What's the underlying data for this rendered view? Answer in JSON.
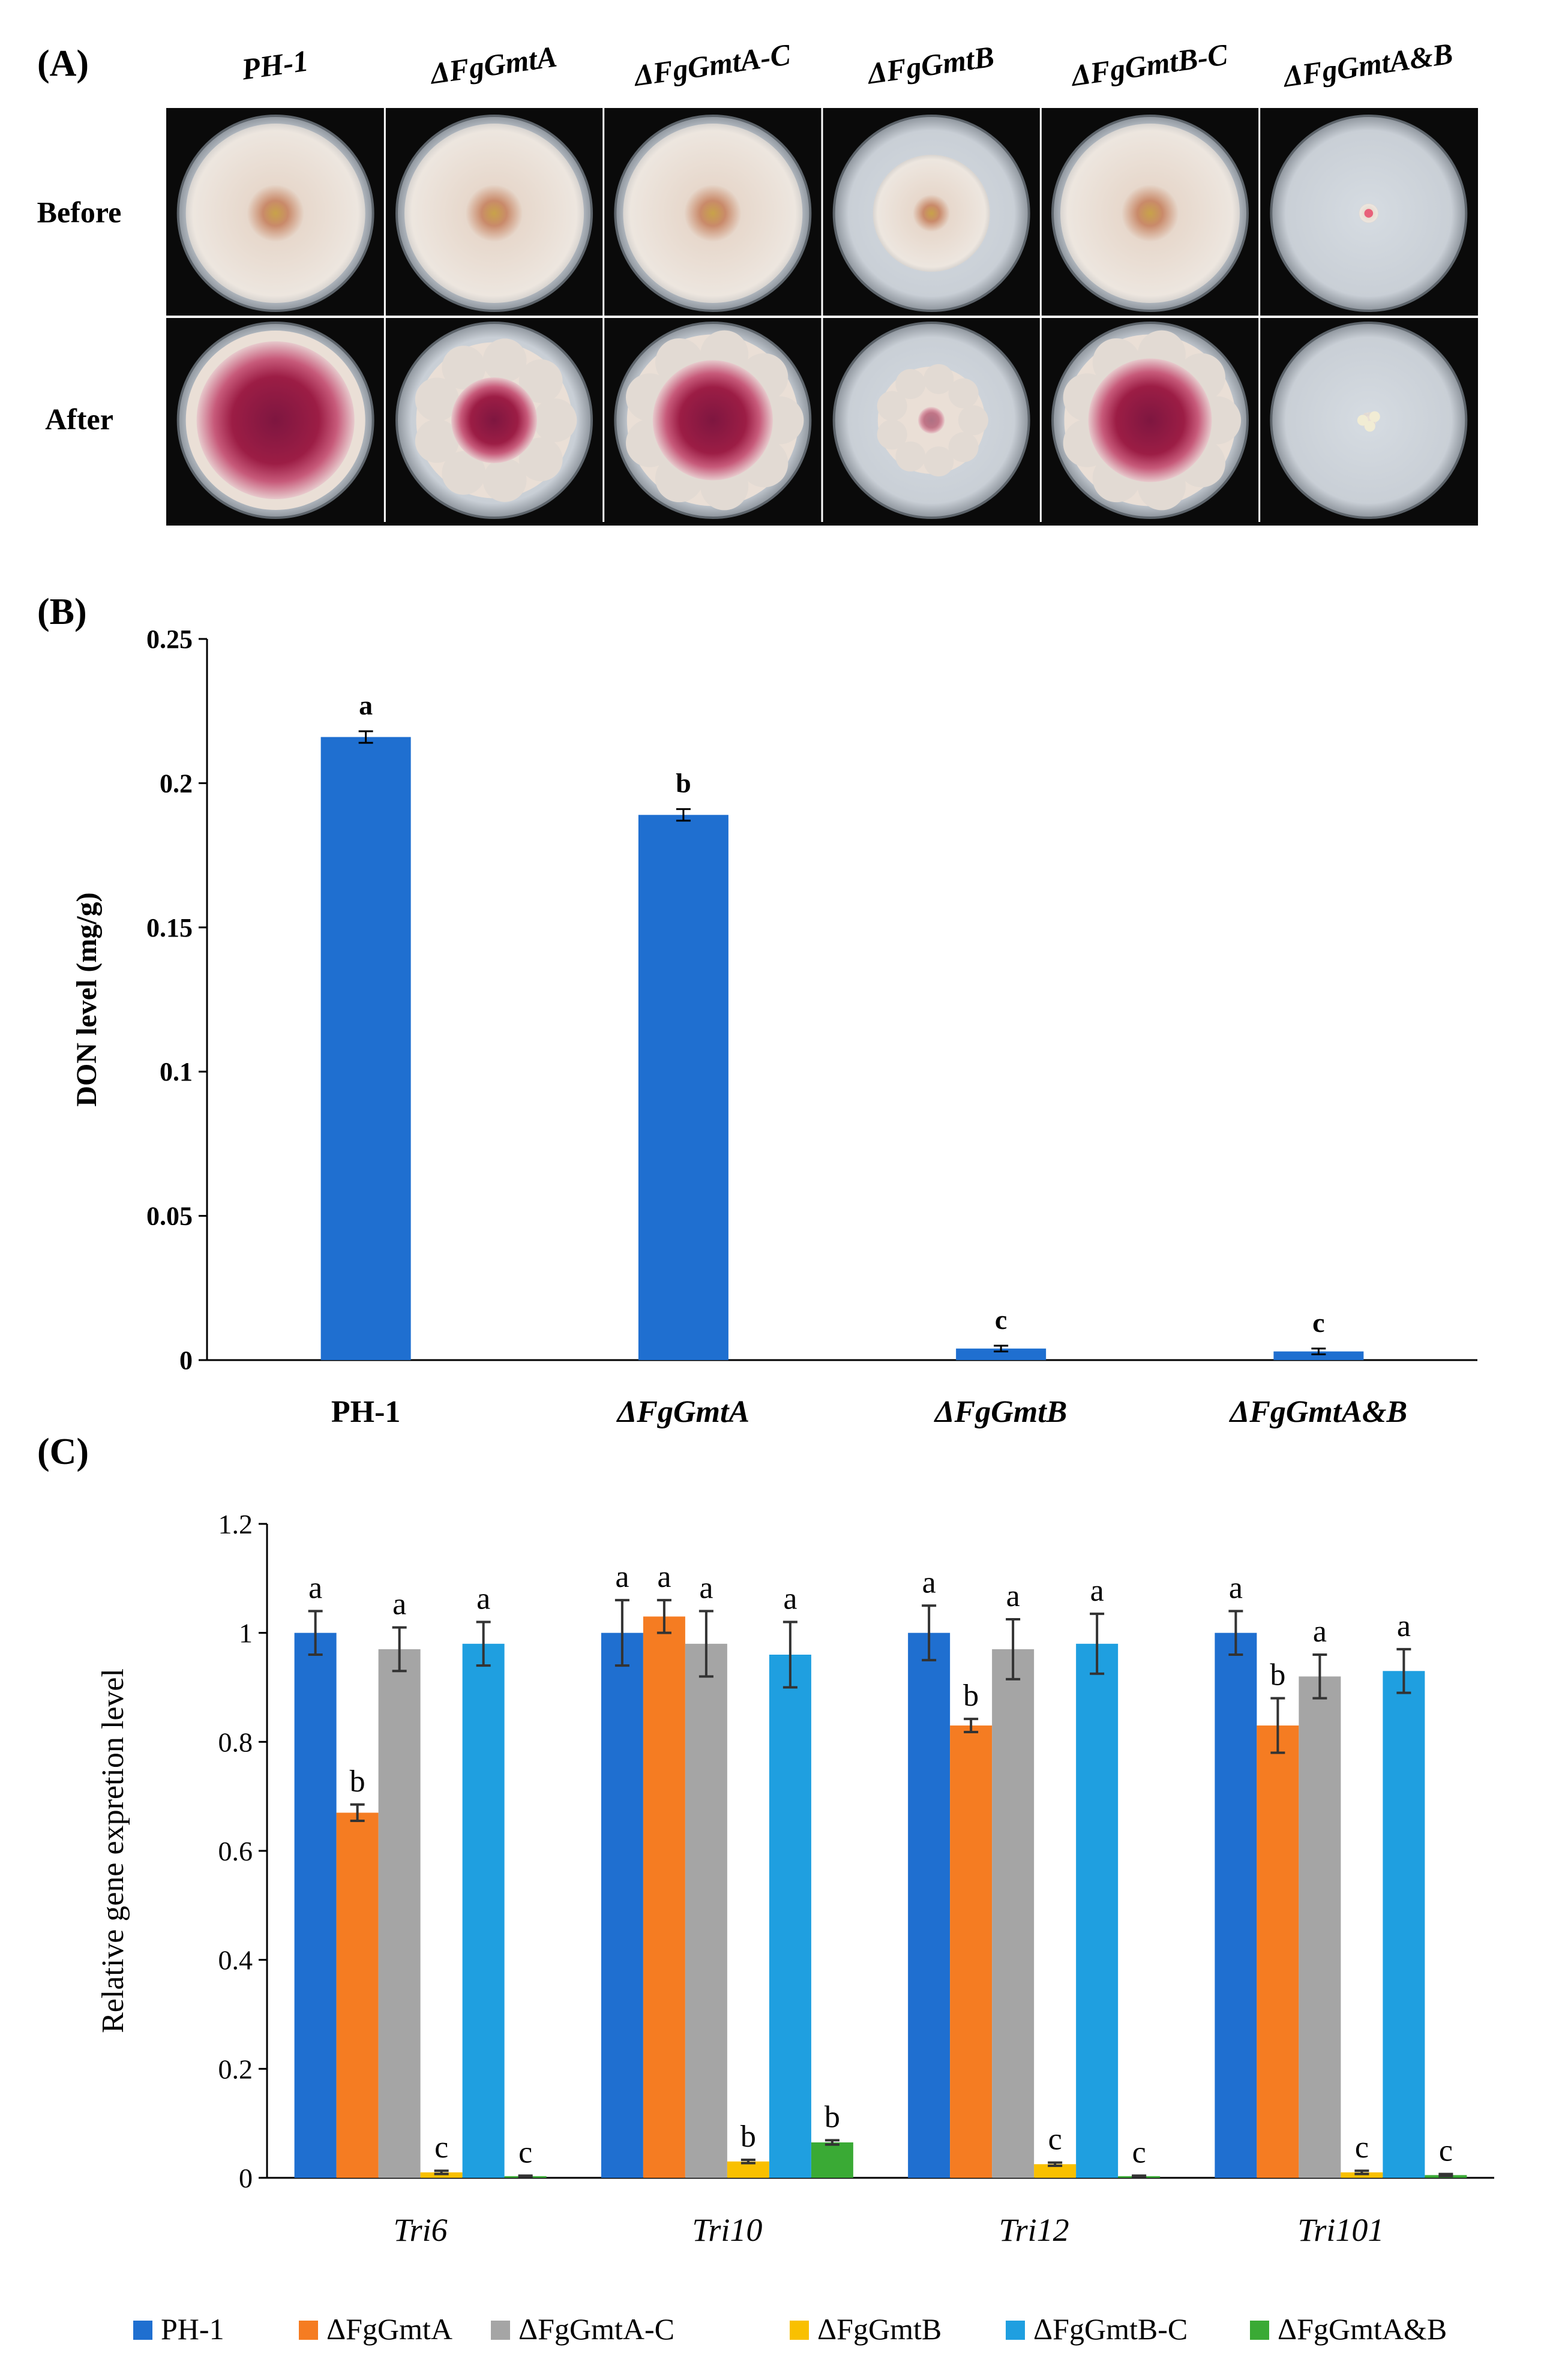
{
  "panel_a": {
    "label": "(A)",
    "strains": [
      "PH-1",
      "ΔFgGmtA",
      "ΔFgGmtA-C",
      "ΔFgGmtB",
      "ΔFgGmtB-C",
      "ΔFgGmtA&B"
    ],
    "rows": [
      "Before",
      "After"
    ],
    "colony_growth_fraction": {
      "before": [
        0.92,
        0.92,
        0.92,
        0.6,
        0.92,
        0.1
      ],
      "after": [
        0.92,
        0.8,
        0.88,
        0.55,
        0.88,
        0.08
      ]
    },
    "colors": {
      "background": "#0a0a0a",
      "plate": "#c9cfd6",
      "mycelium": "#ede6df",
      "pigment": "#9c1d45",
      "center": "#c8a24a"
    }
  },
  "chart_data": [
    {
      "panel": "(B)",
      "type": "bar",
      "ylabel": "DON level (mg/g)",
      "ylim": [
        0,
        0.25
      ],
      "yticks": [
        0,
        0.05,
        0.1,
        0.15,
        0.2,
        0.25
      ],
      "ytick_labels": [
        "0",
        "0.05",
        "0.1",
        "0.15",
        "0.2",
        "0.25"
      ],
      "categories": [
        "PH-1",
        "ΔFgGmtA",
        "ΔFgGmtB",
        "ΔFgGmtA&B"
      ],
      "values": [
        0.216,
        0.189,
        0.004,
        0.003
      ],
      "errors": [
        0.002,
        0.002,
        0.001,
        0.001
      ],
      "significance": [
        "a",
        "b",
        "c",
        "c"
      ],
      "color": "#1f6fd0"
    },
    {
      "panel": "(C)",
      "type": "bar",
      "ylabel": "Relative gene expretion level",
      "ylim": [
        0,
        1.2
      ],
      "yticks": [
        0,
        0.2,
        0.4,
        0.6,
        0.8,
        1,
        1.2
      ],
      "ytick_labels": [
        "0",
        "0.2",
        "0.4",
        "0.6",
        "0.8",
        "1",
        "1.2"
      ],
      "categories": [
        "Tri6",
        "Tri10",
        "Tri12",
        "Tri101"
      ],
      "series": [
        {
          "name": "PH-1",
          "color": "#1f6fd0",
          "values": [
            1.0,
            1.0,
            1.0,
            1.0
          ],
          "errors": [
            0.04,
            0.06,
            0.05,
            0.04
          ],
          "significance": [
            "a",
            "a",
            "a",
            "a"
          ]
        },
        {
          "name": "ΔFgGmtA",
          "color": "#f57c22",
          "values": [
            0.67,
            1.03,
            0.83,
            0.83
          ],
          "errors": [
            0.015,
            0.03,
            0.012,
            0.05
          ],
          "significance": [
            "b",
            "a",
            "b",
            "b"
          ]
        },
        {
          "name": "ΔFgGmtA-C",
          "color": "#a5a5a5",
          "values": [
            0.97,
            0.98,
            0.97,
            0.92
          ],
          "errors": [
            0.04,
            0.06,
            0.055,
            0.04
          ],
          "significance": [
            "a",
            "a",
            "a",
            "a"
          ]
        },
        {
          "name": "ΔFgGmtB",
          "color": "#f9c000",
          "values": [
            0.01,
            0.03,
            0.025,
            0.01
          ],
          "errors": [
            0.003,
            0.003,
            0.003,
            0.003
          ],
          "significance": [
            "c",
            "b",
            "c",
            "c"
          ]
        },
        {
          "name": "ΔFgGmtB-C",
          "color": "#1f9fe0",
          "values": [
            0.98,
            0.96,
            0.98,
            0.93
          ],
          "errors": [
            0.04,
            0.06,
            0.055,
            0.04
          ],
          "significance": [
            "a",
            "a",
            "a",
            "a"
          ]
        },
        {
          "name": "ΔFgGmtA&B",
          "color": "#3aaa35",
          "values": [
            0.003,
            0.065,
            0.003,
            0.005
          ],
          "errors": [
            0.001,
            0.004,
            0.001,
            0.002
          ],
          "significance": [
            "c",
            "b",
            "c",
            "c"
          ]
        }
      ],
      "legend_position": "bottom"
    }
  ]
}
